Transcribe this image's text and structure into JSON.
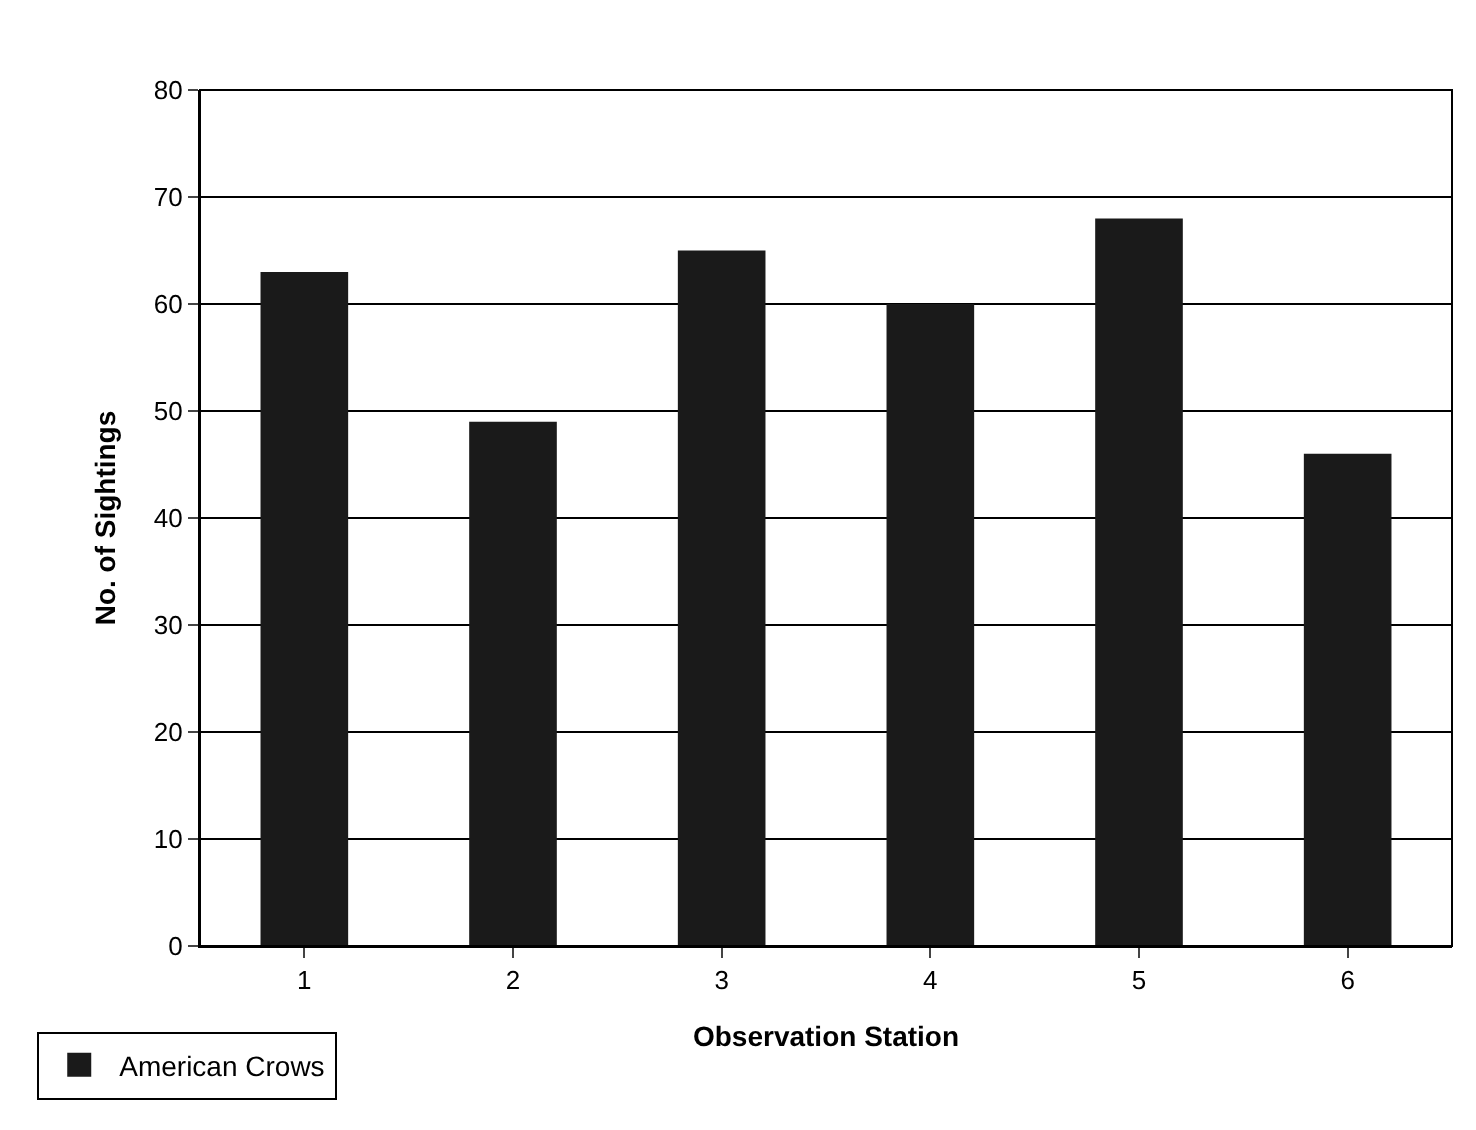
{
  "chart_data": {
    "type": "bar",
    "xlabel": "Observation Station",
    "ylabel": "No. of Sightings",
    "categories": [
      "1",
      "2",
      "3",
      "4",
      "5",
      "6"
    ],
    "series": [
      {
        "name": "American Crows",
        "color": "#1a1a1a",
        "values": [
          63,
          49,
          65,
          60,
          68,
          46
        ]
      }
    ],
    "ylim": [
      0,
      80
    ],
    "yticks": [
      0,
      10,
      20,
      30,
      40,
      50,
      60,
      70,
      80
    ],
    "grid": "y",
    "legend": "bottom left"
  }
}
